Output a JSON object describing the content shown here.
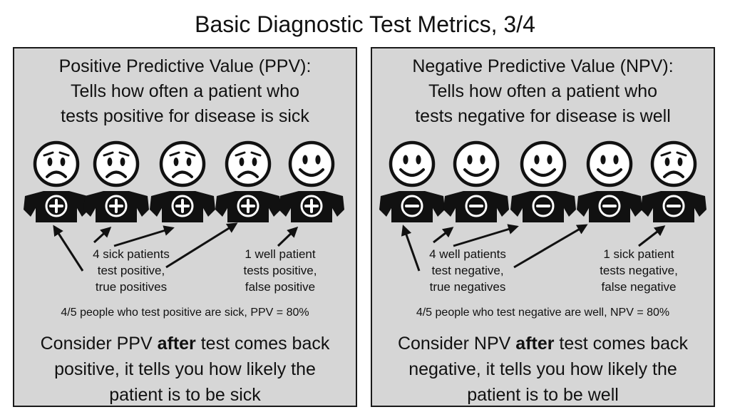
{
  "title": "Basic Diagnostic Test Metrics, 3/4",
  "ppv": {
    "heading": [
      "Positive Predictive Value (PPV):",
      "Tells how often a patient who",
      "tests positive for disease is sick"
    ],
    "figures": [
      {
        "face": "sad",
        "sign": "+"
      },
      {
        "face": "sad",
        "sign": "+"
      },
      {
        "face": "sad",
        "sign": "+"
      },
      {
        "face": "sad",
        "sign": "+"
      },
      {
        "face": "happy",
        "sign": "+"
      }
    ],
    "group_label": [
      "4 sick patients",
      "test positive,",
      "true positives"
    ],
    "single_label": [
      "1 well patient",
      "tests positive,",
      "false positive"
    ],
    "summary": "4/5 people who test positive are sick, PPV = 80%",
    "consider": {
      "line1_pre": "Consider PPV ",
      "line1_bold": "after",
      "line1_post": " test comes back",
      "line2": "positive, it tells you how likely the",
      "line3": "patient is to be sick"
    }
  },
  "npv": {
    "heading": [
      "Negative Predictive Value (NPV):",
      "Tells how often a patient who",
      "tests negative for disease is well"
    ],
    "figures": [
      {
        "face": "happy",
        "sign": "−"
      },
      {
        "face": "happy",
        "sign": "−"
      },
      {
        "face": "happy",
        "sign": "−"
      },
      {
        "face": "happy",
        "sign": "−"
      },
      {
        "face": "sad",
        "sign": "−"
      }
    ],
    "group_label": [
      "4 well patients",
      "test negative,",
      "true negatives"
    ],
    "single_label": [
      "1 sick patient",
      "tests negative,",
      "false negative"
    ],
    "summary": "4/5 people who test negative are well, NPV = 80%",
    "consider": {
      "line1_pre": "Consider NPV ",
      "line1_bold": "after",
      "line1_post": " test comes back",
      "line2": "negative, it tells you how likely the",
      "line3": "patient is to be well"
    }
  }
}
